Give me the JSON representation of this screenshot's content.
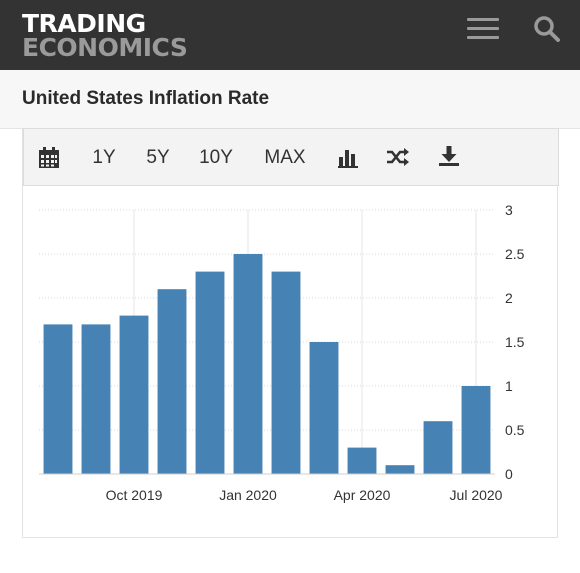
{
  "header": {
    "logo_line1": "TRADING",
    "logo_line2": "ECONOMICS",
    "menu_icon": "hamburger-icon",
    "search_icon": "search-icon"
  },
  "page": {
    "title": "United States Inflation Rate"
  },
  "toolbar": {
    "calendar_icon": "calendar-icon",
    "ranges": [
      "1Y",
      "5Y",
      "10Y",
      "MAX"
    ],
    "chart_type_icon": "bar-chart-icon",
    "compare_icon": "shuffle-icon",
    "download_icon": "download-icon"
  },
  "colors": {
    "bar": "#4682b4",
    "header_bg": "#333333",
    "logo_secondary": "#9a9a9a"
  },
  "chart_data": {
    "type": "bar",
    "x": [
      "2019-08",
      "2019-09",
      "2019-10",
      "2019-11",
      "2019-12",
      "2020-01",
      "2020-02",
      "2020-03",
      "2020-04",
      "2020-05",
      "2020-06",
      "2020-07"
    ],
    "values": [
      1.7,
      1.7,
      1.8,
      2.1,
      2.3,
      2.5,
      2.3,
      1.5,
      0.3,
      0.1,
      0.6,
      1.0
    ],
    "x_tick_labels": [
      {
        "at": "2019-10",
        "label": "Oct 2019"
      },
      {
        "at": "2020-01",
        "label": "Jan 2020"
      },
      {
        "at": "2020-04",
        "label": "Apr 2020"
      },
      {
        "at": "2020-07",
        "label": "Jul 2020"
      }
    ],
    "y_ticks": [
      "0",
      "0.5",
      "1",
      "1.5",
      "2",
      "2.5",
      "3"
    ],
    "ylim": [
      0,
      3
    ],
    "y_axis_side": "right",
    "grid": true,
    "legend": false,
    "title": "",
    "xlabel": "",
    "ylabel": ""
  }
}
